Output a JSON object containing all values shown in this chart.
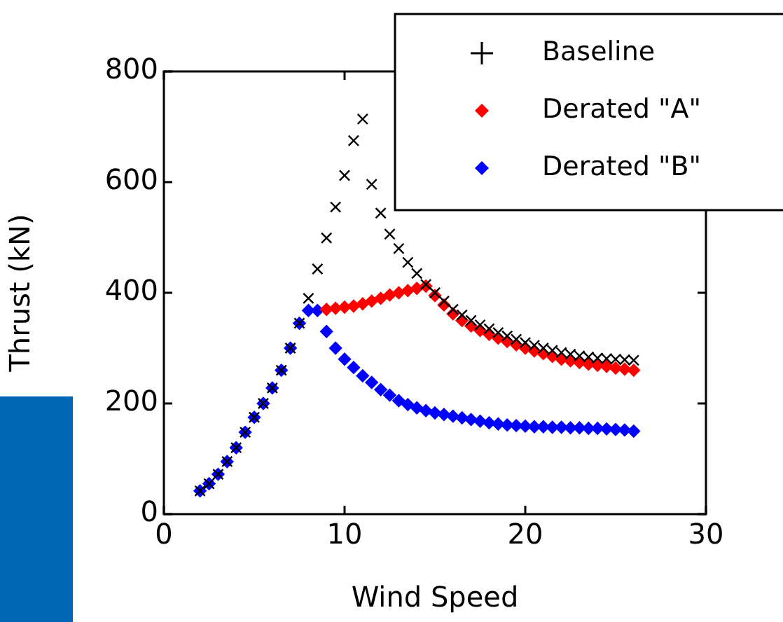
{
  "chart_data": {
    "type": "scatter",
    "xlabel": "Wind Speed",
    "ylabel": "Thrust (kN)",
    "x": [
      2,
      2.5,
      3,
      3.5,
      4,
      4.5,
      5,
      5.5,
      6,
      6.5,
      7,
      7.5,
      8,
      8.5,
      9,
      9.5,
      10,
      10.5,
      11,
      11.5,
      12,
      12.5,
      13,
      13.5,
      14,
      14.5,
      15,
      15.5,
      16,
      16.5,
      17,
      17.5,
      18,
      18.5,
      19,
      19.5,
      20,
      20.5,
      21,
      21.5,
      22,
      22.5,
      23,
      23.5,
      24,
      24.5,
      25,
      25.5,
      26
    ],
    "series": [
      {
        "name": "Baseline",
        "color": "#000000",
        "marker": "cross",
        "values": [
          42,
          55,
          72,
          95,
          120,
          148,
          175,
          200,
          228,
          260,
          300,
          345,
          390,
          443,
          499,
          555,
          612,
          675,
          714,
          596,
          544,
          506,
          480,
          455,
          435,
          415,
          400,
          385,
          370,
          360,
          350,
          342,
          335,
          328,
          322,
          316,
          310,
          305,
          300,
          296,
          292,
          289,
          286,
          284,
          282,
          281,
          280,
          279,
          278
        ]
      },
      {
        "name": "Derated \"A\"",
        "color": "#ff0000",
        "marker": "diamond",
        "values": [
          null,
          null,
          null,
          null,
          null,
          null,
          null,
          null,
          null,
          null,
          null,
          null,
          null,
          null,
          370,
          372,
          374,
          376,
          380,
          385,
          390,
          396,
          400,
          404,
          408,
          412,
          395,
          378,
          362,
          350,
          340,
          332,
          325,
          318,
          312,
          306,
          300,
          295,
          290,
          285,
          280,
          277,
          274,
          271,
          269,
          267,
          264,
          262,
          260
        ]
      },
      {
        "name": "Derated \"B\"",
        "color": "#0000ff",
        "marker": "diamond",
        "values": [
          42,
          55,
          72,
          95,
          120,
          148,
          175,
          200,
          228,
          260,
          300,
          345,
          368,
          368,
          330,
          300,
          280,
          265,
          250,
          238,
          225,
          215,
          205,
          198,
          192,
          187,
          183,
          180,
          177,
          174,
          171,
          168,
          165,
          163,
          161,
          160,
          159,
          158,
          158,
          157,
          157,
          156,
          156,
          155,
          155,
          154,
          153,
          152,
          150
        ]
      }
    ],
    "xlim": [
      0,
      30
    ],
    "xticks": [
      0,
      10,
      20,
      30
    ],
    "ylim": [
      0,
      800
    ],
    "yticks": [
      0,
      200,
      400,
      600,
      800
    ],
    "grid": false,
    "legend": "top right"
  }
}
